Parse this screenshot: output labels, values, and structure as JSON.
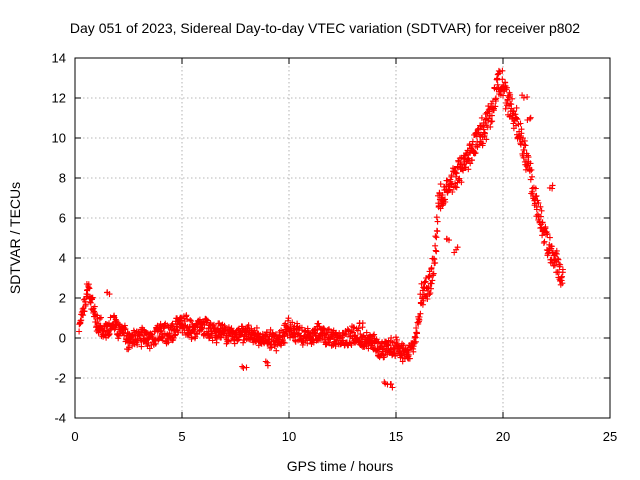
{
  "chart_data": {
    "type": "scatter",
    "title": "Day 051 of 2023, Sidereal Day-to-day VTEC variation (SDTVAR) for receiver p802",
    "xlabel": "GPS time / hours",
    "ylabel": "SDTVAR / TECUs",
    "xlim": [
      0,
      25
    ],
    "ylim": [
      -4,
      14
    ],
    "xticks": [
      "0",
      "5",
      "10",
      "15",
      "20",
      "25"
    ],
    "yticks": [
      "-4",
      "-2",
      "0",
      "2",
      "4",
      "6",
      "8",
      "10",
      "12",
      "14"
    ],
    "grid": true,
    "marker": "+",
    "series": [
      {
        "name": "SDTVAR",
        "color": "#ff0000",
        "trend_x": [
          0.2,
          0.4,
          0.6,
          0.8,
          1.0,
          1.2,
          1.5,
          1.8,
          2.0,
          2.3,
          2.6,
          3.0,
          3.5,
          4.0,
          4.5,
          5.0,
          5.5,
          6.0,
          6.5,
          7.0,
          7.5,
          8.0,
          8.5,
          9.0,
          9.5,
          10.0,
          10.5,
          11.0,
          11.5,
          12.0,
          12.5,
          13.0,
          13.5,
          14.0,
          14.3,
          14.6,
          15.0,
          15.4,
          15.8,
          16.0,
          16.2,
          16.5,
          16.8,
          17.0,
          17.3,
          17.6,
          18.0,
          18.5,
          19.0,
          19.3,
          19.6,
          19.8,
          20.0,
          20.2,
          20.5,
          20.8,
          21.0,
          21.3,
          21.6,
          22.0,
          22.3,
          22.6,
          22.8
        ],
        "trend_y": [
          0.5,
          1.5,
          2.5,
          1.8,
          0.8,
          0.6,
          0.4,
          0.8,
          0.5,
          0.2,
          0.0,
          0.1,
          -0.1,
          0.3,
          0.2,
          0.8,
          0.4,
          0.6,
          0.3,
          0.2,
          0.1,
          0.2,
          0.0,
          0.0,
          -0.2,
          0.5,
          0.2,
          0.1,
          0.3,
          0.0,
          -0.1,
          0.1,
          0.0,
          -0.3,
          -0.6,
          -0.5,
          -0.4,
          -0.8,
          -0.5,
          0.3,
          2.3,
          2.5,
          3.8,
          6.8,
          7.5,
          8.0,
          8.3,
          9.3,
          10.3,
          10.8,
          12.0,
          13.0,
          12.6,
          11.8,
          11.2,
          10.2,
          9.5,
          8.0,
          6.5,
          5.0,
          4.0,
          3.5,
          3.0
        ],
        "band_half_width": 0.8,
        "outliers": [
          {
            "x": 2.5,
            "y": -0.5
          },
          {
            "x": 7.9,
            "y": -1.5
          },
          {
            "x": 9.0,
            "y": -1.3
          },
          {
            "x": 14.5,
            "y": -2.3
          },
          {
            "x": 14.8,
            "y": -2.4
          },
          {
            "x": 15.5,
            "y": -0.8
          },
          {
            "x": 1.6,
            "y": 2.2
          },
          {
            "x": 21.0,
            "y": 12.0
          },
          {
            "x": 21.2,
            "y": 11.0
          },
          {
            "x": 22.2,
            "y": 7.5
          },
          {
            "x": 17.4,
            "y": 5.0
          },
          {
            "x": 17.8,
            "y": 4.4
          },
          {
            "x": 13.4,
            "y": 0.8
          }
        ]
      }
    ]
  }
}
